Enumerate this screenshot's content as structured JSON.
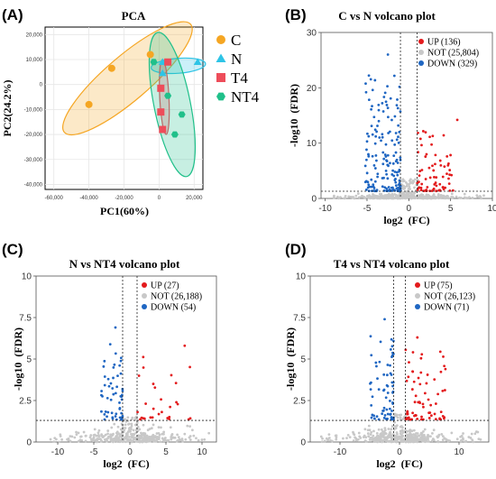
{
  "figure": {
    "panels": [
      {
        "letter": "(A)",
        "title": "PCA"
      },
      {
        "letter": "(B)",
        "title": "C vs N volcano plot"
      },
      {
        "letter": "(C)",
        "title": "N vs NT4 volcano plot"
      },
      {
        "letter": "(D)",
        "title": "T4 vs NT4 volcano plot"
      }
    ]
  },
  "chart_data": [
    {
      "type": "scatter",
      "title": "PCA",
      "xlabel": "PC1(60%)",
      "ylabel": "PC2(24.2%)",
      "xlim": [
        -65000,
        25000
      ],
      "ylim": [
        -42000,
        23000
      ],
      "x_ticks": [
        "-60,000",
        "-40,000",
        "-20,000",
        "0",
        "20,000"
      ],
      "x_tick_values": [
        -60000,
        -40000,
        -20000,
        0,
        20000
      ],
      "y_ticks": [
        "20,000",
        "10,000",
        "0",
        "-10,000",
        "-20,000",
        "-30,000",
        "-40,000"
      ],
      "y_tick_values": [
        20000,
        10000,
        0,
        -10000,
        -20000,
        -30000,
        -40000
      ],
      "series": [
        {
          "name": "C",
          "color": "#f5a623",
          "shape": "circle",
          "points": [
            [
              -40000,
              -8000
            ],
            [
              -27000,
              6500
            ],
            [
              -5000,
              12000
            ]
          ],
          "ellipse": {
            "cx": -18000,
            "cy": 2500,
            "rx": 42000,
            "ry": 9500,
            "angle": 31
          }
        },
        {
          "name": "N",
          "color": "#2ec4e6",
          "shape": "triangle",
          "points": [
            [
              2000,
              9000
            ],
            [
              22000,
              9000
            ],
            [
              2000,
              4500
            ]
          ],
          "ellipse": {
            "cx": 11000,
            "cy": 7500,
            "rx": 15500,
            "ry": 3000,
            "angle": 3
          }
        },
        {
          "name": "T4",
          "color": "#ee4d5a",
          "shape": "square",
          "points": [
            [
              5000,
              9000
            ],
            [
              1000,
              -1500
            ],
            [
              1000,
              -11000
            ],
            [
              2000,
              -18000
            ]
          ],
          "ellipse": {
            "cx": 3000,
            "cy": -5000,
            "rx": 15000,
            "ry": 2600,
            "angle": -86
          }
        },
        {
          "name": "NT4",
          "color": "#20c08a",
          "shape": "hexagon",
          "points": [
            [
              -3000,
              9000
            ],
            [
              9000,
              -20000
            ],
            [
              13000,
              -12000
            ],
            [
              5000,
              -4500
            ]
          ],
          "ellipse": {
            "cx": 7500,
            "cy": -8000,
            "rx": 30000,
            "ry": 10000,
            "angle": -74
          }
        }
      ]
    },
    {
      "type": "scatter",
      "title": "C vs N volcano plot",
      "xlabel": "log2  (FC)",
      "ylabel": "-log10  (FDR)",
      "xlim": [
        -10.5,
        10
      ],
      "ylim": [
        0,
        30
      ],
      "x_ticks": [
        -10,
        -5,
        0,
        5,
        10
      ],
      "y_ticks": [
        0,
        10,
        20,
        30
      ],
      "vlines": [
        -1,
        1
      ],
      "hline": 1.3,
      "series": [
        {
          "name": "UP",
          "count": 136,
          "color": "#e31a1c"
        },
        {
          "name": "NOT",
          "count": 25804,
          "color": "#c8c8c8"
        },
        {
          "name": "DOWN",
          "count": 329,
          "color": "#1f66c2"
        }
      ],
      "legend_labels": [
        "UP (136)",
        "NOT (25,804)",
        "DOWN (329)"
      ],
      "max_up_y": 14.2,
      "max_down_y": 26
    },
    {
      "type": "scatter",
      "title": "N vs NT4 volcano plot",
      "xlabel": "log2  (FC)",
      "ylabel": "-log10  (FDR)",
      "xlim": [
        -13,
        12
      ],
      "ylim": [
        0,
        10
      ],
      "x_ticks": [
        -10,
        -5,
        0,
        5,
        10
      ],
      "y_ticks": [
        "0",
        "2.5",
        "5",
        "7.5",
        "10"
      ],
      "y_tick_values": [
        0,
        2.5,
        5,
        7.5,
        10
      ],
      "vlines": [
        -1,
        1
      ],
      "hline": 1.3,
      "series": [
        {
          "name": "UP",
          "count": 27,
          "color": "#e31a1c"
        },
        {
          "name": "NOT",
          "count": 26188,
          "color": "#c8c8c8"
        },
        {
          "name": "DOWN",
          "count": 54,
          "color": "#1f66c2"
        }
      ],
      "legend_labels": [
        "UP (27)",
        "NOT (26,188)",
        "DOWN (54)"
      ],
      "max_up_y": 5.8,
      "max_down_y": 6.9
    },
    {
      "type": "scatter",
      "title": "T4 vs NT4 volcano plot",
      "xlabel": "log2  (FC)",
      "ylabel": "-log10  (FDR)",
      "xlim": [
        -15,
        15
      ],
      "ylim": [
        0,
        10
      ],
      "x_ticks": [
        -10,
        0,
        10
      ],
      "y_ticks": [
        "0",
        "2.5",
        "5",
        "7.5",
        "10"
      ],
      "y_tick_values": [
        0,
        2.5,
        5,
        7.5,
        10
      ],
      "vlines": [
        -1,
        1
      ],
      "hline": 1.3,
      "series": [
        {
          "name": "UP",
          "count": 75,
          "color": "#e31a1c"
        },
        {
          "name": "NOT",
          "count": 26123,
          "color": "#c8c8c8"
        },
        {
          "name": "DOWN",
          "count": 71,
          "color": "#1f66c2"
        }
      ],
      "legend_labels": [
        "UP (75)",
        "NOT (26,123)",
        "DOWN (71)"
      ],
      "max_up_y": 6.3,
      "max_down_y": 7.4
    }
  ]
}
